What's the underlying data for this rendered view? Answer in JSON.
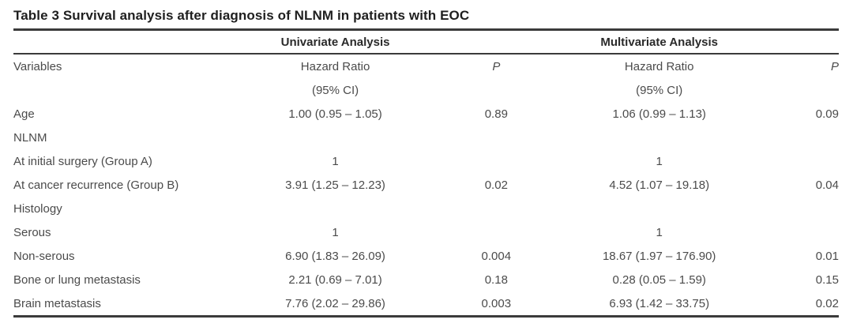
{
  "title": "Table 3 Survival analysis after diagnosis of NLNM in patients with EOC",
  "table": {
    "group_headers": {
      "univariate": "Univariate Analysis",
      "multivariate": "Multivariate Analysis"
    },
    "column_headers": {
      "variables": "Variables",
      "hazard_ratio": "Hazard Ratio",
      "ci": "(95% CI)",
      "p": "P"
    },
    "rows": [
      {
        "variable": "Age",
        "uni_hr": "1.00 (0.95 – 1.05)",
        "uni_p": "0.89",
        "multi_hr": "1.06 (0.99 – 1.13)",
        "multi_p": "0.09"
      },
      {
        "variable": "NLNM",
        "uni_hr": "",
        "uni_p": "",
        "multi_hr": "",
        "multi_p": ""
      },
      {
        "variable": "At initial surgery (Group A)",
        "uni_hr": "1",
        "uni_p": "",
        "multi_hr": "1",
        "multi_p": ""
      },
      {
        "variable": "At cancer recurrence (Group B)",
        "uni_hr": "3.91 (1.25 – 12.23)",
        "uni_p": "0.02",
        "multi_hr": "4.52 (1.07 – 19.18)",
        "multi_p": "0.04"
      },
      {
        "variable": "Histology",
        "uni_hr": "",
        "uni_p": "",
        "multi_hr": "",
        "multi_p": ""
      },
      {
        "variable": "Serous",
        "uni_hr": "1",
        "uni_p": "",
        "multi_hr": "1",
        "multi_p": ""
      },
      {
        "variable": "Non-serous",
        "uni_hr": "6.90 (1.83 – 26.09)",
        "uni_p": "0.004",
        "multi_hr": "18.67 (1.97 – 176.90)",
        "multi_p": "0.01"
      },
      {
        "variable": "Bone or lung metastasis",
        "uni_hr": "2.21 (0.69 – 7.01)",
        "uni_p": "0.18",
        "multi_hr": "0.28 (0.05 – 1.59)",
        "multi_p": "0.15"
      },
      {
        "variable": "Brain metastasis",
        "uni_hr": "7.76 (2.02 – 29.86)",
        "uni_p": "0.003",
        "multi_hr": "6.93 (1.42 – 33.75)",
        "multi_p": "0.02"
      }
    ]
  },
  "colors": {
    "title_text": "#1f1f1f",
    "body_text": "#4b4b4b",
    "rule": "#3b3b3b"
  }
}
